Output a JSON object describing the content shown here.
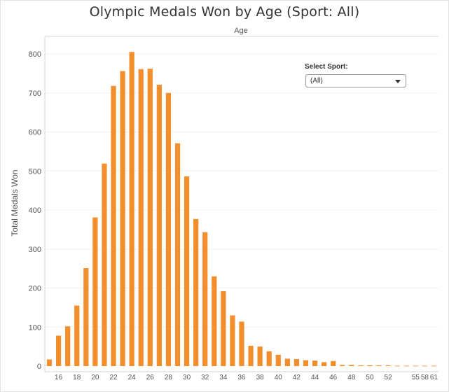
{
  "title": "Olympic Medals Won by Age (Sport: All)",
  "filter": {
    "label": "Select Sport:",
    "value": "(All)"
  },
  "colors": {
    "bar": "#F28E2B",
    "axis": "#d4d4d4",
    "grid": "#f0f0f0",
    "text": "#555555"
  },
  "chart_data": {
    "type": "bar",
    "title": "Olympic Medals Won by Age (Sport: All)",
    "xlabel": "Age",
    "ylabel": "Total Medals Won",
    "ylim": [
      0,
      840
    ],
    "y_ticks": [
      0,
      100,
      200,
      300,
      400,
      500,
      600,
      700,
      800
    ],
    "x_tick_labels": [
      "16",
      "18",
      "20",
      "22",
      "24",
      "26",
      "28",
      "30",
      "32",
      "34",
      "36",
      "38",
      "40",
      "42",
      "44",
      "46",
      "48",
      "50",
      "52",
      "55",
      "58",
      "61"
    ],
    "grid": "horizontal",
    "categories": [
      15,
      16,
      17,
      18,
      19,
      20,
      21,
      22,
      23,
      24,
      25,
      26,
      27,
      28,
      29,
      30,
      31,
      32,
      33,
      34,
      35,
      36,
      37,
      38,
      39,
      40,
      41,
      42,
      43,
      44,
      45,
      46,
      47,
      48,
      49,
      50,
      51,
      52,
      53,
      54,
      55,
      58,
      61
    ],
    "values": [
      17,
      78,
      102,
      155,
      251,
      381,
      519,
      718,
      756,
      805,
      761,
      762,
      721,
      700,
      571,
      486,
      377,
      343,
      230,
      192,
      130,
      114,
      52,
      50,
      38,
      29,
      19,
      18,
      15,
      14,
      10,
      13,
      3,
      3,
      2,
      2,
      2,
      2,
      1,
      1,
      1,
      1,
      1
    ]
  }
}
